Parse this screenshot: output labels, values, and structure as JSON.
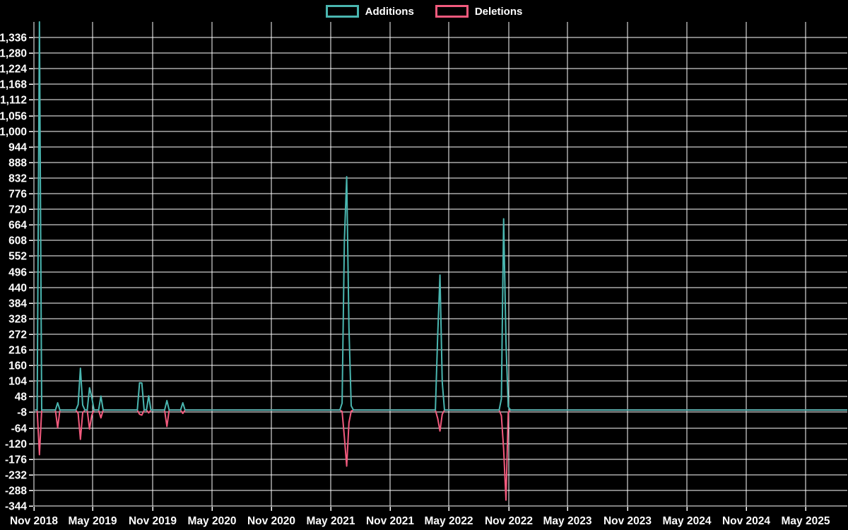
{
  "page": {
    "background": "#000000",
    "text_color": "#ffffff",
    "grid_color": "#ffffff"
  },
  "legend": {
    "items": [
      {
        "label": "Additions",
        "color": "#4ab6b0"
      },
      {
        "label": "Deletions",
        "color": "#f25a7d"
      }
    ]
  },
  "chart_data": {
    "type": "line",
    "title": "",
    "xlabel": "",
    "ylabel": "",
    "grid": true,
    "legend_position": "top-center",
    "background": "#000000",
    "x_axis": {
      "tick_labels": [
        "Nov 2018",
        "May 2019",
        "Nov 2019",
        "May 2020",
        "Nov 2020",
        "May 2021",
        "Nov 2021",
        "May 2022",
        "Nov 2022",
        "May 2023",
        "Nov 2023",
        "May 2024",
        "Nov 2024",
        "May 2025"
      ],
      "range": [
        "2018-11-01",
        "2025-09-07"
      ]
    },
    "y_axis": {
      "tick_labels": [
        "-344",
        "-288",
        "-232",
        "-176",
        "-120",
        "-64",
        "-8",
        "48",
        "104",
        "160",
        "216",
        "272",
        "328",
        "384",
        "440",
        "496",
        "552",
        "608",
        "664",
        "720",
        "776",
        "832",
        "888",
        "944",
        "1,000",
        "1,056",
        "1,112",
        "1,168",
        "1,224",
        "1,280",
        "1,336"
      ],
      "tick_step": 56,
      "range": [
        -344,
        1392
      ]
    },
    "note": "Weekly series. Weeks not listed below have value 0. The first Additions spike (week of 2018-11-18) exceeds the top of the plot and is clipped at the chart top (> 1,392).",
    "series": [
      {
        "name": "Additions",
        "color": "#4ab6b0",
        "weekly_nonzero": {
          "2018-11-18": 1500,
          "2019-01-13": 26,
          "2019-03-17": 20,
          "2019-03-24": 150,
          "2019-03-31": 18,
          "2019-04-21": 80,
          "2019-04-28": 45,
          "2019-05-26": 50,
          "2019-09-22": 98,
          "2019-09-29": 97,
          "2019-10-20": 51,
          "2019-12-15": 34,
          "2020-02-02": 26,
          "2021-06-06": 25,
          "2021-06-13": 606,
          "2021-06-20": 837,
          "2021-06-27": 295,
          "2021-07-04": 15,
          "2022-03-27": 269,
          "2022-04-03": 484,
          "2022-04-10": 101,
          "2022-10-09": 40,
          "2022-10-16": 686,
          "2022-10-23": 245,
          "2022-10-30": 12
        }
      },
      {
        "name": "Deletions",
        "color": "#f25a7d",
        "weekly_nonzero": {
          "2018-11-18": -160,
          "2019-01-13": -63,
          "2019-03-17": -12,
          "2019-03-24": -105,
          "2019-03-31": -10,
          "2019-04-21": -68,
          "2019-04-28": -18,
          "2019-05-26": -28,
          "2019-09-22": -15,
          "2019-09-29": -18,
          "2019-10-20": -10,
          "2019-12-15": -59,
          "2020-02-02": -12,
          "2021-06-06": -5,
          "2021-06-13": -96,
          "2021-06-20": -201,
          "2021-06-27": -45,
          "2021-07-04": -4,
          "2022-03-27": -30,
          "2022-04-03": -75,
          "2022-04-10": -15,
          "2022-10-09": -20,
          "2022-10-16": -140,
          "2022-10-23": -323,
          "2022-10-30": -8
        }
      }
    ]
  }
}
